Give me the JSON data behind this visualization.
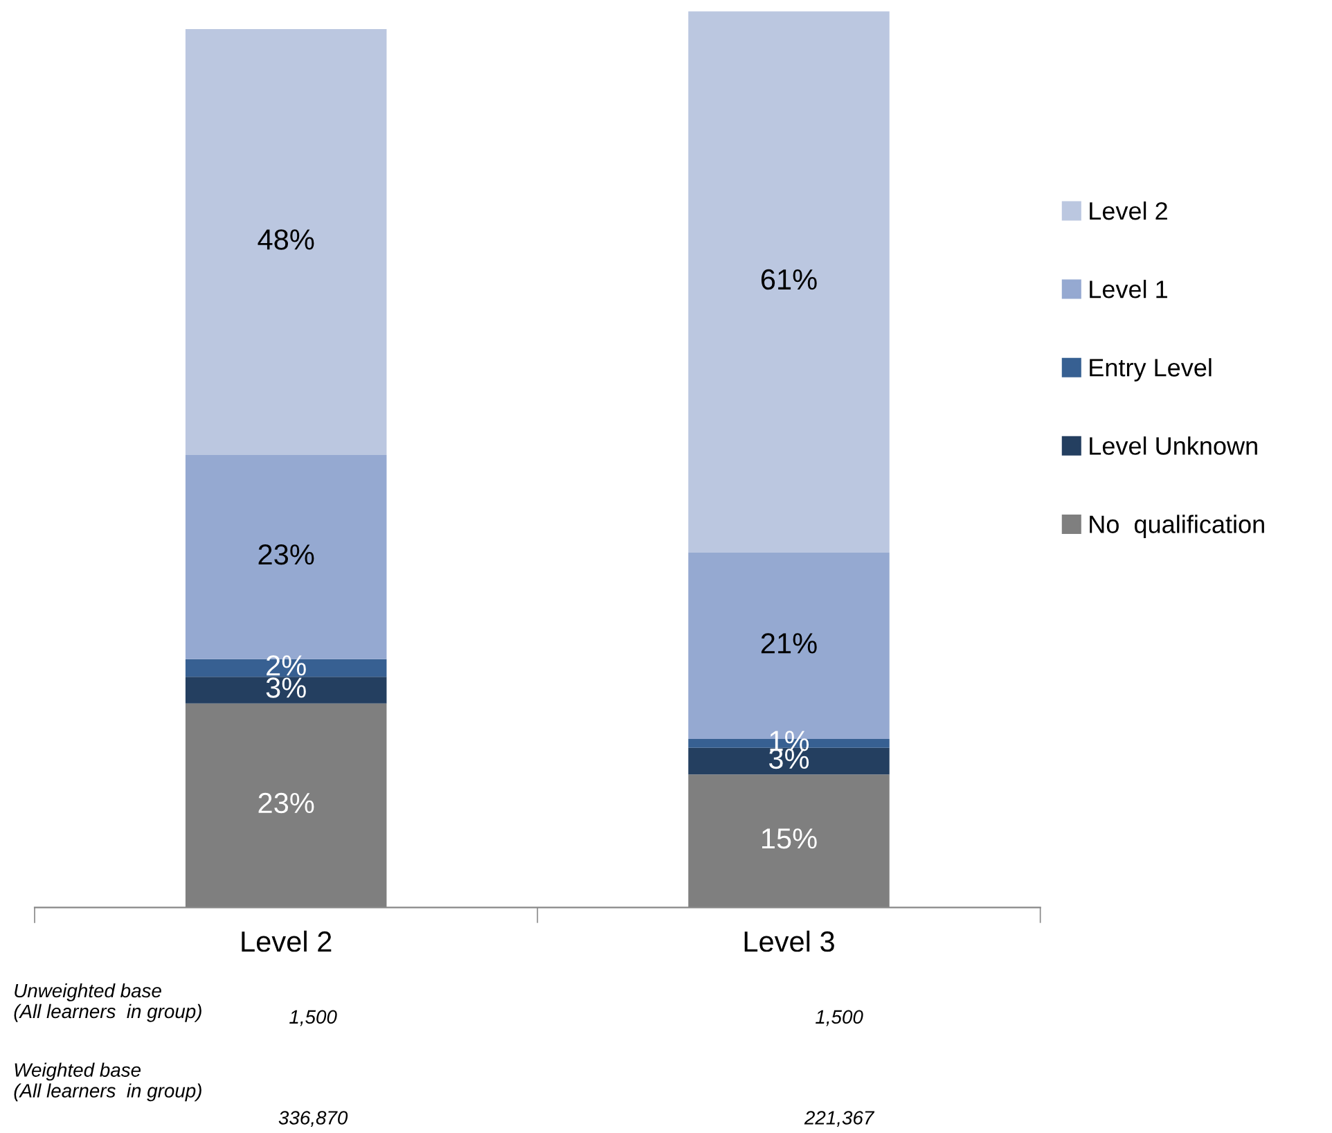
{
  "chart_data": {
    "type": "bar",
    "stacked": true,
    "categories": [
      "Level 2",
      "Level 3"
    ],
    "series": [
      {
        "name": "No  qualification",
        "color": "#7f7f7f",
        "values": [
          23,
          15
        ],
        "value_labels": [
          "23%",
          "15%"
        ]
      },
      {
        "name": "Level Unknown",
        "color": "#243f60",
        "values": [
          3,
          3
        ],
        "value_labels": [
          "3%",
          "3%"
        ]
      },
      {
        "name": "Entry Level",
        "color": "#376092",
        "values": [
          2,
          1
        ],
        "value_labels": [
          "2%",
          "1%"
        ]
      },
      {
        "name": "Level 1",
        "color": "#95a9d1",
        "values": [
          23,
          21
        ],
        "value_labels": [
          "23%",
          "21%"
        ]
      },
      {
        "name": "Level 2",
        "color": "#bbc7e0",
        "values": [
          48,
          61
        ],
        "value_labels": [
          "48%",
          "61%"
        ]
      }
    ],
    "legend": "right",
    "annotations": [
      "Unweighted base\n(All learners  in group)",
      "1,500",
      "1,500",
      "Weighted base\n(All learners  in group)",
      "336,870",
      "221,367"
    ]
  }
}
